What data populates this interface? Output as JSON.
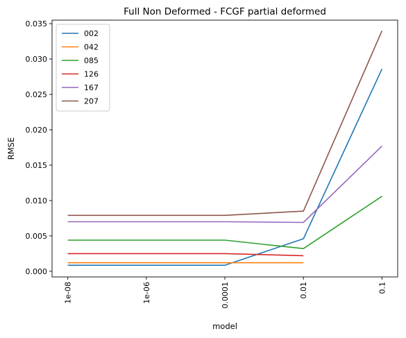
{
  "chart_data": {
    "type": "line",
    "title": "Full Non Deformed - FCGF partial deformed",
    "xlabel": "model",
    "ylabel": "RMSE",
    "x": [
      "1e-08",
      "1e-06",
      "0.0001",
      "0.01",
      "0.1"
    ],
    "ylim": [
      -0.0008,
      0.0355
    ],
    "yticks": [
      "0.000",
      "0.005",
      "0.010",
      "0.015",
      "0.020",
      "0.025",
      "0.030",
      "0.035"
    ],
    "grid": false,
    "legend_position": "top-left",
    "series": [
      {
        "name": "002",
        "color": "#1f77b4",
        "x": [
          "1e-08",
          "0.0001",
          "0.01",
          "0.1"
        ],
        "values": [
          0.00085,
          0.00085,
          0.0046,
          0.0286
        ]
      },
      {
        "name": "042",
        "color": "#ff7f0e",
        "x": [
          "1e-08",
          "0.0001",
          "0.01"
        ],
        "values": [
          0.0012,
          0.0012,
          0.0012
        ]
      },
      {
        "name": "085",
        "color": "#2ca02c",
        "x": [
          "1e-08",
          "0.0001",
          "0.01",
          "0.1"
        ],
        "values": [
          0.0044,
          0.0044,
          0.0032,
          0.0106
        ]
      },
      {
        "name": "126",
        "color": "#d62728",
        "x": [
          "1e-08",
          "0.0001",
          "0.01"
        ],
        "values": [
          0.0025,
          0.0025,
          0.0022
        ]
      },
      {
        "name": "167",
        "color": "#9467bd",
        "x": [
          "1e-08",
          "0.0001",
          "0.01",
          "0.1"
        ],
        "values": [
          0.007,
          0.007,
          0.0069,
          0.0177
        ]
      },
      {
        "name": "207",
        "color": "#8c564b",
        "x": [
          "1e-08",
          "0.0001",
          "0.01",
          "0.1"
        ],
        "values": [
          0.0079,
          0.0079,
          0.0085,
          0.034
        ]
      }
    ]
  }
}
